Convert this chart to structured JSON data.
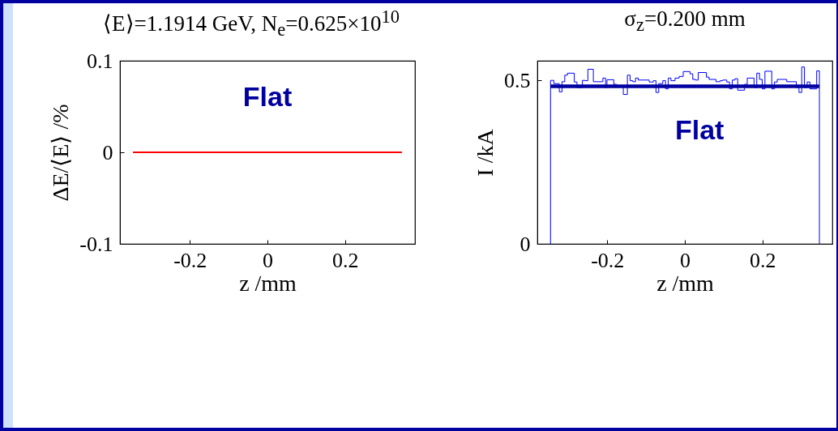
{
  "chart_data": [
    {
      "type": "line",
      "title": "⟨E⟩=1.1914 GeV, N$_{e}$=0.625×10$^{10}$",
      "xlabel": "z /mm",
      "ylabel": "ΔE/⟨E⟩ /%",
      "annotations": [
        "Flat"
      ],
      "xlim": [
        -0.38,
        0.38
      ],
      "xticks": [
        -0.2,
        0,
        0.2
      ],
      "ylim": [
        -0.1,
        0.1
      ],
      "yticks": [
        -0.1,
        0,
        0.1
      ],
      "grid": false,
      "series": [
        {
          "type": "line",
          "color": "#ff0000",
          "x": [
            -0.3464,
            0.3464
          ],
          "values": [
            0,
            0
          ]
        }
      ]
    },
    {
      "type": "line",
      "title": "σ$_{z}$=0.200 mm",
      "xlabel": "z /mm",
      "ylabel": "I /kA",
      "annotations": [
        "Flat"
      ],
      "xlim": [
        -0.38,
        0.38
      ],
      "xticks": [
        -0.2,
        0,
        0.2
      ],
      "ylim": [
        0,
        0.56
      ],
      "yticks": [
        0,
        0.5
      ],
      "grid": false,
      "series": [
        {
          "type": "step",
          "color": "#0000ff",
          "x": [
            -0.346,
            -0.346,
            -0.3375,
            -0.3234,
            -0.3164,
            -0.3094,
            -0.3024,
            -0.2848,
            -0.2779,
            -0.2638,
            -0.2568,
            -0.2498,
            -0.2357,
            -0.2112,
            -0.2042,
            -0.2006,
            -0.1831,
            -0.1761,
            -0.1585,
            -0.148,
            -0.141,
            -0.134,
            -0.127,
            -0.12,
            -0.0918,
            -0.0813,
            -0.0743,
            -0.0673,
            -0.0568,
            -0.0497,
            -0.0427,
            -0.0357,
            -0.0252,
            -0.0147,
            -0.0041,
            0.0134,
            0.0204,
            0.0274,
            0.0345,
            0.0555,
            0.0625,
            0.0801,
            0.0906,
            0.0976,
            0.1081,
            0.1152,
            0.1222,
            0.1292,
            0.1362,
            0.1537,
            0.1608,
            0.1783,
            0.1853,
            0.1924,
            0.1994,
            0.2064,
            0.2239,
            0.2309,
            0.238,
            0.2625,
            0.2871,
            0.2941,
            0.3011,
            0.3081,
            0.3152,
            0.3222,
            0.3397,
            0.3467,
            0.3467
          ],
          "values": [
            0,
            0.5,
            0.49,
            0.465,
            0.496,
            0.516,
            0.522,
            0.495,
            0.478,
            0.5,
            0.499,
            0.534,
            0.496,
            0.507,
            0.478,
            0.502,
            0.488,
            0.482,
            0.457,
            0.516,
            0.499,
            0.496,
            0.507,
            0.501,
            0.495,
            0.499,
            0.463,
            0.49,
            0.499,
            0.474,
            0.507,
            0.499,
            0.507,
            0.512,
            0.527,
            0.52,
            0.503,
            0.501,
            0.524,
            0.51,
            0.503,
            0.496,
            0.499,
            0.501,
            0.495,
            0.474,
            0.501,
            0.505,
            0.47,
            0.488,
            0.507,
            0.478,
            0.522,
            0.503,
            0.474,
            0.528,
            0.474,
            0.495,
            0.503,
            0.496,
            0.478,
            0.463,
            0.541,
            0.478,
            0.495,
            0.474,
            0.529,
            0.529,
            0
          ]
        },
        {
          "type": "line",
          "color": "#0000a0",
          "x": [
            -0.3464,
            0.3464
          ],
          "values": [
            0.482,
            0.482
          ]
        }
      ]
    }
  ]
}
